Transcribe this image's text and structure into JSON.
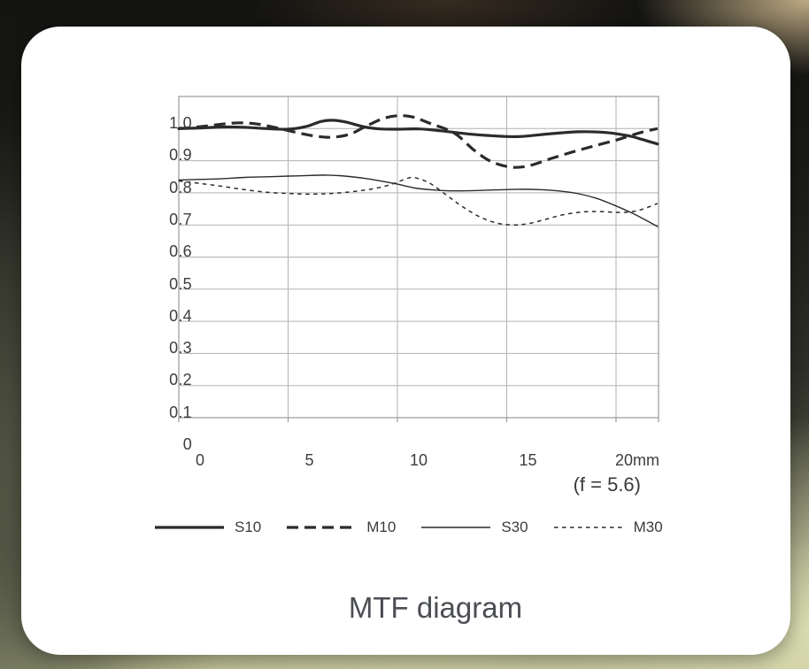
{
  "background": {
    "style": "blurred-photo-backdrop",
    "colors": {
      "top": "#151511",
      "left": "#525545",
      "bottom_right": "#dadcb0",
      "top_right": "#c7b28a"
    }
  },
  "card": {
    "background": "#ffffff"
  },
  "chart_data": {
    "type": "line",
    "title": "MTF diagram",
    "annotation": "(f = 5.6)",
    "xlabel": "",
    "ylabel": "",
    "x_unit": "mm",
    "xlim": [
      0,
      21.9
    ],
    "ylim": [
      0,
      1
    ],
    "grid": true,
    "legend_position": "bottom",
    "grid_color": "#b2b2b2",
    "axis_color": "#9a9a9a",
    "curve_color": "#2b2b2b",
    "label_color": "#3d3d3d",
    "x_ticks": [
      {
        "value": 0,
        "label": "0"
      },
      {
        "value": 5,
        "label": "5"
      },
      {
        "value": 10,
        "label": "10"
      },
      {
        "value": 15,
        "label": "15"
      },
      {
        "value": 20,
        "label": "20mm"
      }
    ],
    "y_ticks": [
      {
        "value": 1.0,
        "label": "1.0"
      },
      {
        "value": 0.9,
        "label": "0.9"
      },
      {
        "value": 0.8,
        "label": "0.8"
      },
      {
        "value": 0.7,
        "label": "0.7"
      },
      {
        "value": 0.6,
        "label": "0.6"
      },
      {
        "value": 0.5,
        "label": "0.5"
      },
      {
        "value": 0.4,
        "label": "0.4"
      },
      {
        "value": 0.3,
        "label": "0.3"
      },
      {
        "value": 0.2,
        "label": "0.2"
      },
      {
        "value": 0.1,
        "label": "0.1"
      },
      {
        "value": 0,
        "label": "0"
      }
    ],
    "series": [
      {
        "name": "S10",
        "width": 3.2,
        "dash": null,
        "points": [
          [
            0,
            0.9
          ],
          [
            1,
            0.902
          ],
          [
            2,
            0.905
          ],
          [
            3,
            0.904
          ],
          [
            4,
            0.9
          ],
          [
            5,
            0.898
          ],
          [
            5.8,
            0.906
          ],
          [
            6.5,
            0.922
          ],
          [
            7,
            0.926
          ],
          [
            7.6,
            0.921
          ],
          [
            8.5,
            0.905
          ],
          [
            9.2,
            0.899
          ],
          [
            10,
            0.898
          ],
          [
            11,
            0.899
          ],
          [
            12,
            0.893
          ],
          [
            13,
            0.885
          ],
          [
            14,
            0.879
          ],
          [
            15.5,
            0.875
          ],
          [
            17,
            0.884
          ],
          [
            18.3,
            0.89
          ],
          [
            19.5,
            0.888
          ],
          [
            20.6,
            0.877
          ],
          [
            21.2,
            0.866
          ],
          [
            21.9,
            0.852
          ]
        ]
      },
      {
        "name": "M10",
        "width": 3.2,
        "dash": [
          13,
          7
        ],
        "points": [
          [
            0,
            0.9
          ],
          [
            1,
            0.906
          ],
          [
            2,
            0.914
          ],
          [
            2.8,
            0.918
          ],
          [
            3.6,
            0.914
          ],
          [
            4.5,
            0.902
          ],
          [
            5.5,
            0.886
          ],
          [
            6.3,
            0.876
          ],
          [
            7,
            0.873
          ],
          [
            7.8,
            0.882
          ],
          [
            8.5,
            0.905
          ],
          [
            9.3,
            0.93
          ],
          [
            10,
            0.94
          ],
          [
            10.7,
            0.936
          ],
          [
            11.5,
            0.916
          ],
          [
            12.6,
            0.886
          ],
          [
            13.5,
            0.833
          ],
          [
            14.3,
            0.797
          ],
          [
            15.2,
            0.78
          ],
          [
            16,
            0.784
          ],
          [
            17,
            0.806
          ],
          [
            18,
            0.827
          ],
          [
            19,
            0.846
          ],
          [
            20,
            0.864
          ],
          [
            20.6,
            0.877
          ],
          [
            21.2,
            0.889
          ],
          [
            21.9,
            0.9
          ]
        ]
      },
      {
        "name": "S30",
        "width": 1.4,
        "dash": null,
        "points": [
          [
            0,
            0.74
          ],
          [
            1,
            0.742
          ],
          [
            2,
            0.744
          ],
          [
            3,
            0.748
          ],
          [
            4,
            0.75
          ],
          [
            5,
            0.752
          ],
          [
            6,
            0.754
          ],
          [
            6.8,
            0.755
          ],
          [
            7.6,
            0.752
          ],
          [
            8.5,
            0.745
          ],
          [
            9.3,
            0.736
          ],
          [
            10,
            0.727
          ],
          [
            10.8,
            0.715
          ],
          [
            11.6,
            0.709
          ],
          [
            12.5,
            0.706
          ],
          [
            13.5,
            0.707
          ],
          [
            14.5,
            0.709
          ],
          [
            15.5,
            0.711
          ],
          [
            16.5,
            0.71
          ],
          [
            17.5,
            0.705
          ],
          [
            18.3,
            0.697
          ],
          [
            19.1,
            0.683
          ],
          [
            19.9,
            0.662
          ],
          [
            20.7,
            0.638
          ],
          [
            21.3,
            0.617
          ],
          [
            21.9,
            0.595
          ]
        ]
      },
      {
        "name": "M30",
        "width": 1.5,
        "dash": [
          4.5,
          4.5
        ],
        "points": [
          [
            0,
            0.737
          ],
          [
            1,
            0.729
          ],
          [
            2,
            0.72
          ],
          [
            3,
            0.71
          ],
          [
            4,
            0.702
          ],
          [
            5,
            0.698
          ],
          [
            6,
            0.696
          ],
          [
            7,
            0.698
          ],
          [
            8,
            0.704
          ],
          [
            9,
            0.714
          ],
          [
            9.8,
            0.728
          ],
          [
            10.4,
            0.744
          ],
          [
            10.8,
            0.747
          ],
          [
            11.5,
            0.729
          ],
          [
            12.3,
            0.69
          ],
          [
            13,
            0.656
          ],
          [
            13.8,
            0.624
          ],
          [
            14.6,
            0.605
          ],
          [
            15.3,
            0.6
          ],
          [
            16,
            0.604
          ],
          [
            16.8,
            0.618
          ],
          [
            17.6,
            0.632
          ],
          [
            18.4,
            0.64
          ],
          [
            19.2,
            0.642
          ],
          [
            20,
            0.639
          ],
          [
            20.7,
            0.641
          ],
          [
            21.3,
            0.651
          ],
          [
            21.9,
            0.667
          ]
        ]
      }
    ]
  }
}
